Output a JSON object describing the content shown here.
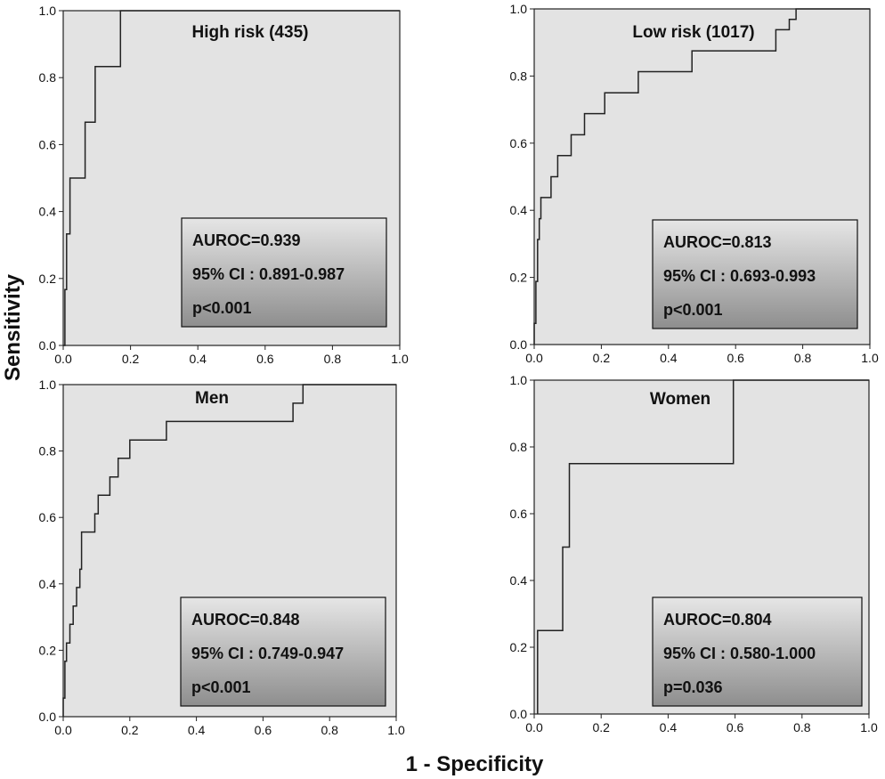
{
  "xlabel": "1 -  Specificity",
  "ylabel": "Sensitivity",
  "colors": {
    "plot_bg": "#e3e3e3",
    "line": "#222222",
    "box_top": "#e6e6e6",
    "box_bottom": "#8e8e8e"
  },
  "chart_data": [
    {
      "type": "line",
      "title": "High risk (435)",
      "xlim": [
        0,
        1
      ],
      "ylim": [
        0,
        1
      ],
      "xticks": [
        "0.0",
        "0.2",
        "0.4",
        "0.6",
        "0.8",
        "1.0"
      ],
      "yticks": [
        "0.0",
        "0.2",
        "0.4",
        "0.6",
        "0.8",
        "1.0"
      ],
      "x": [
        0,
        0.005,
        0.005,
        0.01,
        0.01,
        0.02,
        0.02,
        0.065,
        0.065,
        0.095,
        0.095,
        0.17,
        0.17,
        1.0
      ],
      "y": [
        0,
        0,
        0.167,
        0.167,
        0.333,
        0.333,
        0.5,
        0.5,
        0.667,
        0.667,
        0.833,
        0.833,
        1.0,
        1.0
      ],
      "stats": [
        "AUROC=0.939",
        "95% CI : 0.891-0.987",
        "p<0.001"
      ]
    },
    {
      "type": "line",
      "title": "Low risk (1017)",
      "xlim": [
        0,
        1
      ],
      "ylim": [
        0,
        1
      ],
      "xticks": [
        "0.0",
        "0.2",
        "0.4",
        "0.6",
        "0.8",
        "1.0"
      ],
      "yticks": [
        "0.0",
        "0.2",
        "0.4",
        "0.6",
        "0.8",
        "1.0"
      ],
      "x": [
        0,
        0,
        0.005,
        0.005,
        0.01,
        0.01,
        0.015,
        0.015,
        0.02,
        0.02,
        0.05,
        0.05,
        0.055,
        0.055,
        0.07,
        0.07,
        0.11,
        0.11,
        0.15,
        0.15,
        0.21,
        0.21,
        0.31,
        0.31,
        0.47,
        0.47,
        0.72,
        0.72,
        0.76,
        0.76,
        0.78,
        0.78,
        1.0
      ],
      "y": [
        0,
        0.063,
        0.063,
        0.188,
        0.188,
        0.313,
        0.313,
        0.375,
        0.375,
        0.438,
        0.438,
        0.5,
        0.5,
        0.5,
        0.5,
        0.563,
        0.563,
        0.625,
        0.625,
        0.688,
        0.688,
        0.75,
        0.75,
        0.813,
        0.813,
        0.875,
        0.875,
        0.938,
        0.938,
        0.969,
        0.969,
        1.0,
        1.0
      ],
      "stats": [
        "AUROC=0.813",
        "95% CI : 0.693-0.993",
        "p<0.001"
      ]
    },
    {
      "type": "line",
      "title": "Men",
      "xlim": [
        0,
        1
      ],
      "ylim": [
        0,
        1
      ],
      "xticks": [
        "0.0",
        "0.2",
        "0.4",
        "0.6",
        "0.8",
        "1.0"
      ],
      "yticks": [
        "0.0",
        "0.2",
        "0.4",
        "0.6",
        "0.8",
        "1.0"
      ],
      "x": [
        0,
        0,
        0.005,
        0.005,
        0.01,
        0.01,
        0.02,
        0.02,
        0.03,
        0.03,
        0.04,
        0.04,
        0.05,
        0.05,
        0.055,
        0.055,
        0.095,
        0.095,
        0.105,
        0.105,
        0.14,
        0.14,
        0.165,
        0.165,
        0.2,
        0.2,
        0.23,
        0.23,
        0.31,
        0.31,
        0.69,
        0.69,
        0.72,
        0.72,
        1.0
      ],
      "y": [
        0,
        0.056,
        0.056,
        0.167,
        0.167,
        0.222,
        0.222,
        0.278,
        0.278,
        0.333,
        0.333,
        0.389,
        0.389,
        0.444,
        0.444,
        0.556,
        0.556,
        0.611,
        0.611,
        0.667,
        0.667,
        0.722,
        0.722,
        0.778,
        0.778,
        0.833,
        0.833,
        0.833,
        0.833,
        0.889,
        0.889,
        0.944,
        0.944,
        1.0,
        1.0
      ],
      "stats": [
        "AUROC=0.848",
        "95% CI : 0.749-0.947",
        "p<0.001"
      ]
    },
    {
      "type": "line",
      "title": "Women",
      "xlim": [
        0,
        1
      ],
      "ylim": [
        0,
        1
      ],
      "xticks": [
        "0.0",
        "0.2",
        "0.4",
        "0.6",
        "0.8",
        "1.0"
      ],
      "yticks": [
        "0.0",
        "0.2",
        "0.4",
        "0.6",
        "0.8",
        "1.0"
      ],
      "x": [
        0.01,
        0.01,
        0.085,
        0.085,
        0.105,
        0.105,
        0.595,
        0.595,
        1.0
      ],
      "y": [
        0,
        0.25,
        0.25,
        0.5,
        0.5,
        0.75,
        0.75,
        1.0,
        1.0
      ],
      "stats": [
        "AUROC=0.804",
        "95% CI : 0.580-1.000",
        "p=0.036"
      ]
    }
  ]
}
